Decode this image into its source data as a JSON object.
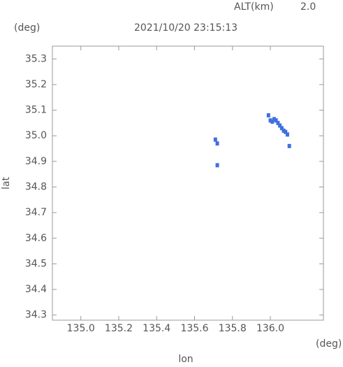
{
  "chart_data": {
    "type": "scatter",
    "title": "2021/10/20 23:15:13",
    "altitude_label": "ALT(km)",
    "altitude_value": "2.0",
    "y_unit": "(deg)",
    "x_unit": "(deg)",
    "xlabel": "lon",
    "ylabel": "lat",
    "xlim": [
      134.85,
      136.28
    ],
    "ylim": [
      34.28,
      35.35
    ],
    "xticks": [
      {
        "value": 135.0,
        "label": "135.0"
      },
      135.2,
      135.4,
      135.6,
      135.8,
      {
        "value": 136.0,
        "label": "136.0"
      }
    ],
    "yticks": [
      34.3,
      34.4,
      34.5,
      34.6,
      34.7,
      34.8,
      34.9,
      {
        "value": 35.0,
        "label": "35.0"
      },
      35.1,
      35.2,
      35.3
    ],
    "series": [
      {
        "color": "#3f6fe0",
        "x": [
          135.99,
          136.0,
          136.01,
          136.02,
          136.03,
          136.04,
          136.05,
          136.06,
          136.07,
          136.08,
          136.09,
          136.1,
          135.71,
          135.72,
          135.72
        ],
        "values": [
          35.08,
          35.06,
          35.055,
          35.065,
          35.06,
          35.05,
          35.04,
          35.03,
          35.02,
          35.015,
          35.005,
          34.96,
          34.985,
          34.97,
          34.885
        ]
      }
    ]
  }
}
